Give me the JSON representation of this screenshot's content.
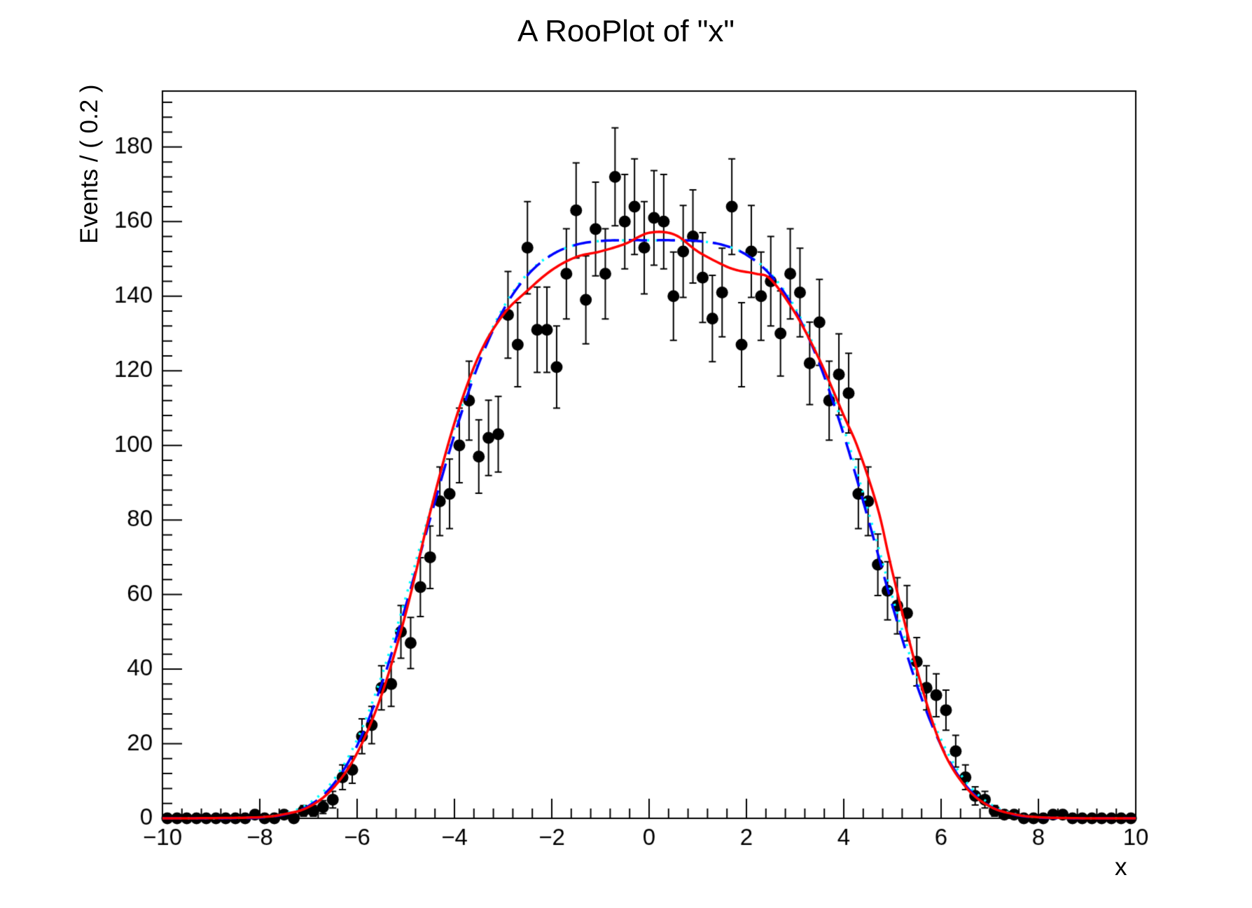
{
  "title": "A RooPlot of \"x\"",
  "x_axis": {
    "label": "x",
    "min": -10,
    "max": 10,
    "major_step": 2,
    "minor_step": 0.4,
    "tick_values": [
      -10,
      -8,
      -6,
      -4,
      -2,
      0,
      2,
      4,
      6,
      8,
      10
    ],
    "tick_labels": [
      "−10",
      "−8",
      "−6",
      "−4",
      "−2",
      "0",
      "2",
      "4",
      "6",
      "8",
      "10"
    ]
  },
  "y_axis": {
    "label": "Events / ( 0.2 )",
    "min": 0,
    "max": 195,
    "major_step": 20,
    "minor_step": 4,
    "tick_values": [
      0,
      20,
      40,
      60,
      80,
      100,
      120,
      140,
      160,
      180
    ],
    "tick_labels": [
      "0",
      "20",
      "40",
      "60",
      "80",
      "100",
      "120",
      "140",
      "160",
      "180"
    ]
  },
  "colors": {
    "background": "#ffffff",
    "frame": "#000000",
    "data_marker": "#000000",
    "curve_red": "#ff0000",
    "curve_blue": "#0000ff",
    "curve_cyan": "#00ffff"
  },
  "chart_data": {
    "type": "scatter",
    "title": "A RooPlot of \"x\"",
    "xlabel": "x",
    "ylabel": "Events / ( 0.2 )",
    "xlim": [
      -10,
      10
    ],
    "ylim": [
      0,
      195
    ],
    "grid": false,
    "legend": "none",
    "bin_width": 0.2,
    "errors": "poisson_sqrt",
    "points": {
      "x_start": -9.9,
      "x_step": 0.2,
      "counts": [
        0,
        0,
        0,
        0,
        0,
        0,
        0,
        0,
        0,
        1,
        0,
        0,
        1,
        0,
        2,
        2,
        3,
        5,
        11,
        13,
        22,
        25,
        35,
        36,
        50,
        47,
        62,
        70,
        85,
        87,
        100,
        112,
        97,
        102,
        103,
        135,
        127,
        153,
        131,
        131,
        121,
        146,
        163,
        139,
        158,
        146,
        172,
        160,
        164,
        153,
        161,
        160,
        140,
        152,
        156,
        145,
        134,
        141,
        164,
        127,
        152,
        140,
        144,
        130,
        146,
        141,
        122,
        133,
        112,
        119,
        114,
        87,
        85,
        68,
        61,
        57,
        55,
        42,
        35,
        33,
        29,
        18,
        11,
        6,
        5,
        2,
        1,
        1,
        0,
        0,
        0,
        1,
        1,
        0,
        0,
        0,
        0,
        0,
        0,
        0
      ]
    },
    "series": [
      {
        "name": "data-points",
        "style": "filled-circle-with-error-bars",
        "color": "#000000"
      },
      {
        "name": "curve-cyan-dotted",
        "line_style": "dotted",
        "color": "#00ffff",
        "points": [
          [
            -10,
            0
          ],
          [
            -9,
            0
          ],
          [
            -8.5,
            0.1
          ],
          [
            -8,
            0.3
          ],
          [
            -7.5,
            1.2
          ],
          [
            -7,
            3.9
          ],
          [
            -6.5,
            10.0
          ],
          [
            -6,
            21.1
          ],
          [
            -5.5,
            38.0
          ],
          [
            -5,
            59.3
          ],
          [
            -4.5,
            82.5
          ],
          [
            -4,
            104.6
          ],
          [
            -3.5,
            123.1
          ],
          [
            -3,
            136.9
          ],
          [
            -2.5,
            146.0
          ],
          [
            -2,
            151.2
          ],
          [
            -1.5,
            153.8
          ],
          [
            -1,
            154.8
          ],
          [
            -0.5,
            155.0
          ],
          [
            0,
            155.0
          ],
          [
            0.5,
            155.0
          ],
          [
            1,
            154.8
          ],
          [
            1.5,
            153.8
          ],
          [
            2,
            151.2
          ],
          [
            2.5,
            146.0
          ],
          [
            3,
            136.9
          ],
          [
            3.5,
            123.1
          ],
          [
            4,
            104.6
          ],
          [
            4.5,
            82.5
          ],
          [
            5,
            59.3
          ],
          [
            5.5,
            38.0
          ],
          [
            6,
            21.1
          ],
          [
            6.5,
            10.0
          ],
          [
            7,
            3.9
          ],
          [
            7.5,
            1.2
          ],
          [
            8,
            0.3
          ],
          [
            8.5,
            0.1
          ],
          [
            9,
            0
          ],
          [
            10,
            0
          ]
        ]
      },
      {
        "name": "curve-blue-dashed",
        "line_style": "dashed",
        "color": "#0000ff",
        "points": [
          [
            -10,
            0
          ],
          [
            -9,
            0
          ],
          [
            -8.5,
            0.05
          ],
          [
            -8,
            0.2
          ],
          [
            -7.5,
            1.0
          ],
          [
            -7,
            3.3
          ],
          [
            -6.5,
            8.9
          ],
          [
            -6,
            19.5
          ],
          [
            -5.5,
            35.8
          ],
          [
            -5,
            57.0
          ],
          [
            -4.5,
            80.3
          ],
          [
            -4,
            102.8
          ],
          [
            -3.5,
            121.9
          ],
          [
            -3,
            136.2
          ],
          [
            -2.5,
            145.6
          ],
          [
            -2,
            151.1
          ],
          [
            -1.5,
            153.8
          ],
          [
            -1,
            154.8
          ],
          [
            -0.5,
            155.0
          ],
          [
            0,
            155.0
          ],
          [
            0.5,
            155.0
          ],
          [
            1,
            154.8
          ],
          [
            1.5,
            153.8
          ],
          [
            2,
            151.1
          ],
          [
            2.5,
            145.6
          ],
          [
            3,
            136.2
          ],
          [
            3.5,
            121.9
          ],
          [
            4,
            102.8
          ],
          [
            4.5,
            80.3
          ],
          [
            5,
            57.0
          ],
          [
            5.5,
            35.8
          ],
          [
            6,
            19.5
          ],
          [
            6.5,
            8.9
          ],
          [
            7,
            3.3
          ],
          [
            7.5,
            1.0
          ],
          [
            8,
            0.2
          ],
          [
            8.5,
            0.05
          ],
          [
            9,
            0
          ],
          [
            10,
            0
          ]
        ]
      },
      {
        "name": "curve-red-solid",
        "line_style": "solid",
        "color": "#ff0000",
        "points": [
          [
            -10,
            0
          ],
          [
            -9,
            0.05
          ],
          [
            -8,
            0.3
          ],
          [
            -7.5,
            1.1
          ],
          [
            -7,
            3.0
          ],
          [
            -6.5,
            8.0
          ],
          [
            -6,
            17.5
          ],
          [
            -5.5,
            33.0
          ],
          [
            -5,
            55.0
          ],
          [
            -4.5,
            82.0
          ],
          [
            -4,
            106.0
          ],
          [
            -3.5,
            124.0
          ],
          [
            -3,
            135.0
          ],
          [
            -2.5,
            141.5
          ],
          [
            -2,
            147.0
          ],
          [
            -1.5,
            150.5
          ],
          [
            -1,
            152.0
          ],
          [
            -0.5,
            154.0
          ],
          [
            -0.2,
            156.0
          ],
          [
            0,
            157.0
          ],
          [
            0.3,
            157.2
          ],
          [
            0.6,
            156.0
          ],
          [
            1,
            152.0
          ],
          [
            1.5,
            148.5
          ],
          [
            1.8,
            147.0
          ],
          [
            2.2,
            146.0
          ],
          [
            2.5,
            144.5
          ],
          [
            3,
            135.5
          ],
          [
            3.5,
            123.0
          ],
          [
            4,
            108.0
          ],
          [
            4.3,
            99.0
          ],
          [
            4.7,
            83.0
          ],
          [
            5,
            66.0
          ],
          [
            5.5,
            40.0
          ],
          [
            6,
            19.5
          ],
          [
            6.5,
            8.5
          ],
          [
            7,
            3.2
          ],
          [
            7.5,
            1.1
          ],
          [
            8,
            0.3
          ],
          [
            9,
            0
          ],
          [
            10,
            0
          ]
        ]
      }
    ]
  }
}
